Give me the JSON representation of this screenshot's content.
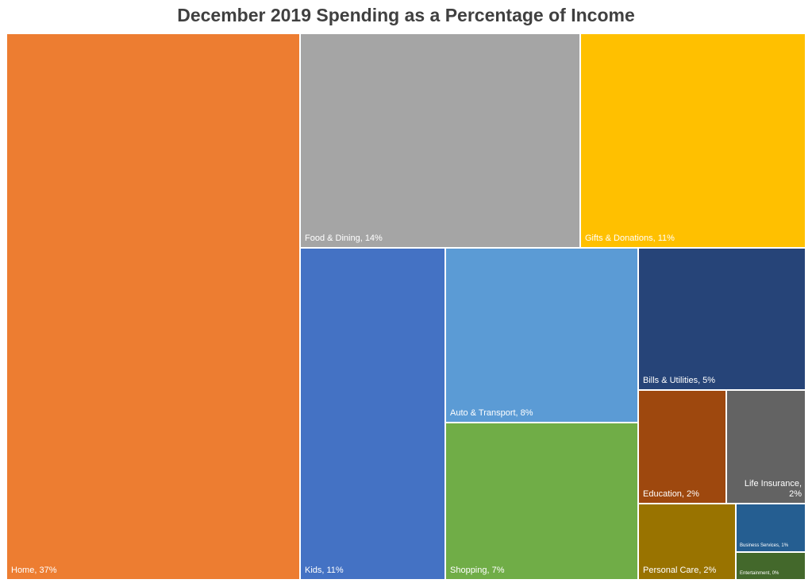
{
  "chart_data": {
    "type": "treemap",
    "title": "December 2019 Spending as a Percentage of Income",
    "items": [
      {
        "label": "Home, 37%",
        "category": "Home",
        "value": 37,
        "color": "#ED7D31"
      },
      {
        "label": "Food & Dining, 14%",
        "category": "Food & Dining",
        "value": 14,
        "color": "#A5A5A5"
      },
      {
        "label": "Gifts & Donations, 11%",
        "category": "Gifts & Donations",
        "value": 11,
        "color": "#FFC000"
      },
      {
        "label": "Kids, 11%",
        "category": "Kids",
        "value": 11,
        "color": "#4472C4"
      },
      {
        "label": "Auto & Transport, 8%",
        "category": "Auto & Transport",
        "value": 8,
        "color": "#5B9BD5"
      },
      {
        "label": "Shopping, 7%",
        "category": "Shopping",
        "value": 7,
        "color": "#70AD47"
      },
      {
        "label": "Bills & Utilities, 5%",
        "category": "Bills & Utilities",
        "value": 5,
        "color": "#264478"
      },
      {
        "label": "Education, 2%",
        "category": "Education",
        "value": 2,
        "color": "#9E480E"
      },
      {
        "label": "Life Insurance, 2%",
        "category": "Life Insurance",
        "value": 2,
        "color": "#636363"
      },
      {
        "label": "Personal Care, 2%",
        "category": "Personal Care",
        "value": 2,
        "color": "#997300"
      },
      {
        "label": "Business Services, 1%",
        "category": "Business Services",
        "value": 1,
        "color": "#255E91"
      },
      {
        "label": "Entertainment, 0%",
        "category": "Entertainment",
        "value": 0,
        "color": "#43682B"
      }
    ]
  }
}
